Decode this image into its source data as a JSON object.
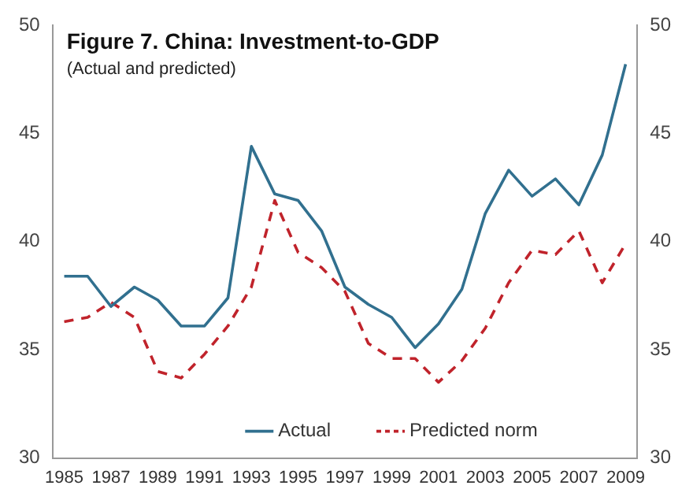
{
  "chart_data": {
    "type": "line",
    "title": "Figure 7. China: Investment-to-GDP",
    "subtitle": "(Actual and predicted)",
    "categories": [
      "1985",
      null,
      "1987",
      null,
      "1989",
      null,
      "1991",
      null,
      "1993",
      null,
      "1995",
      null,
      "1997",
      null,
      "1999",
      null,
      "2001",
      null,
      "2003",
      null,
      "2005",
      null,
      "2007",
      null,
      "2009"
    ],
    "series": [
      {
        "name": "Actual",
        "color": "#31708f",
        "line_style": "solid",
        "values": [
          38.4,
          38.4,
          37.0,
          37.9,
          37.3,
          36.1,
          36.1,
          37.4,
          44.4,
          42.2,
          41.9,
          40.5,
          37.9,
          37.1,
          36.5,
          35.1,
          36.2,
          37.8,
          41.3,
          43.3,
          42.1,
          42.9,
          41.7,
          44.0,
          48.2
        ]
      },
      {
        "name": "Predicted norm",
        "color": "#c0232b",
        "line_style": "dashed",
        "values": [
          36.3,
          36.5,
          37.2,
          36.5,
          34.0,
          33.7,
          34.8,
          36.1,
          37.9,
          41.9,
          39.5,
          38.8,
          37.7,
          35.3,
          34.6,
          34.6,
          33.5,
          34.5,
          36.0,
          38.1,
          39.6,
          39.4,
          40.5,
          38.1,
          39.9
        ]
      }
    ],
    "ylim": [
      30,
      50
    ],
    "yticks": [
      30,
      35,
      40,
      45,
      50
    ],
    "y2lim": [
      30,
      50
    ],
    "y2ticks": [
      30,
      35,
      40,
      45,
      50
    ],
    "grid": false,
    "legend": "bottom",
    "marker": "none"
  }
}
